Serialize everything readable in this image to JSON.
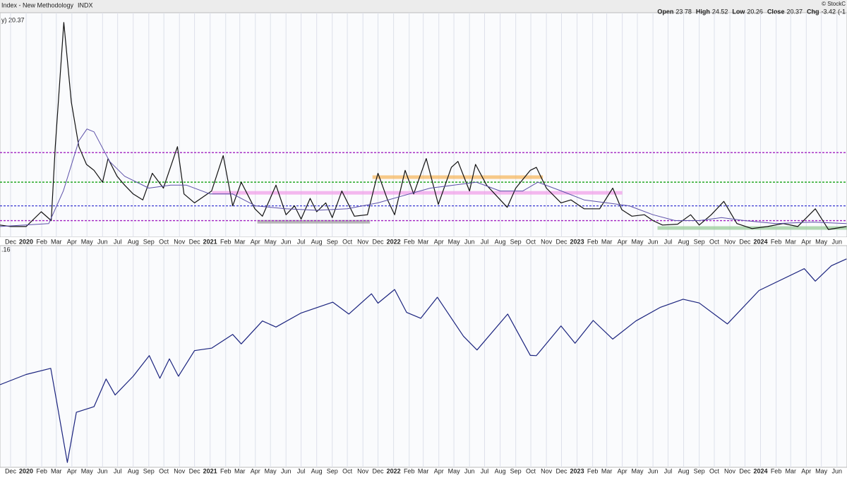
{
  "header": {
    "title": "Index - New Methodology",
    "symbol": "INDX",
    "brand": "© StockC",
    "quote": [
      {
        "label": "Open",
        "value": 23.78
      },
      {
        "label": "High",
        "value": 24.52
      },
      {
        "label": "Low",
        "value": 20.26
      },
      {
        "label": "Close",
        "value": 20.37
      },
      {
        "label": "Chg",
        "value": -3.42
      }
    ],
    "change_pct": "(-1"
  },
  "chart_data": [
    {
      "type": "line",
      "legend_text": "y) 20.37",
      "xlim": [
        "2019-11-10",
        "2024-06-21"
      ],
      "ylim": [
        9.4,
        85.3
      ],
      "log_scale": false,
      "grid": true,
      "xticks": [
        {
          "value": "2019-12-01",
          "label": "Dec"
        },
        {
          "value": "2020-01-01",
          "label": "2020"
        },
        {
          "value": "2020-02-01",
          "label": "Feb"
        },
        {
          "value": "2020-03-01",
          "label": "Mar"
        },
        {
          "value": "2020-04-01",
          "label": "Apr"
        },
        {
          "value": "2020-05-01",
          "label": "May"
        },
        {
          "value": "2020-06-01",
          "label": "Jun"
        },
        {
          "value": "2020-07-01",
          "label": "Jul"
        },
        {
          "value": "2020-08-01",
          "label": "Aug"
        },
        {
          "value": "2020-09-01",
          "label": "Sep"
        },
        {
          "value": "2020-10-01",
          "label": "Oct"
        },
        {
          "value": "2020-11-01",
          "label": "Nov"
        },
        {
          "value": "2020-12-01",
          "label": "Dec"
        },
        {
          "value": "2021-01-01",
          "label": "2021"
        },
        {
          "value": "2021-02-01",
          "label": "Feb"
        },
        {
          "value": "2021-03-01",
          "label": "Mar"
        },
        {
          "value": "2021-04-01",
          "label": "Apr"
        },
        {
          "value": "2021-05-01",
          "label": "May"
        },
        {
          "value": "2021-06-01",
          "label": "Jun"
        },
        {
          "value": "2021-07-01",
          "label": "Jul"
        },
        {
          "value": "2021-08-01",
          "label": "Aug"
        },
        {
          "value": "2021-09-01",
          "label": "Sep"
        },
        {
          "value": "2021-10-01",
          "label": "Oct"
        },
        {
          "value": "2021-11-01",
          "label": "Nov"
        },
        {
          "value": "2021-12-01",
          "label": "Dec"
        },
        {
          "value": "2022-01-01",
          "label": "2022"
        },
        {
          "value": "2022-02-01",
          "label": "Feb"
        },
        {
          "value": "2022-03-01",
          "label": "Mar"
        },
        {
          "value": "2022-04-01",
          "label": "Apr"
        },
        {
          "value": "2022-05-01",
          "label": "May"
        },
        {
          "value": "2022-06-01",
          "label": "Jun"
        },
        {
          "value": "2022-07-01",
          "label": "Jul"
        },
        {
          "value": "2022-08-01",
          "label": "Aug"
        },
        {
          "value": "2022-09-01",
          "label": "Sep"
        },
        {
          "value": "2022-10-01",
          "label": "Oct"
        },
        {
          "value": "2022-11-01",
          "label": "Nov"
        },
        {
          "value": "2022-12-01",
          "label": "Dec"
        },
        {
          "value": "2023-01-01",
          "label": "2023"
        },
        {
          "value": "2023-02-01",
          "label": "Feb"
        },
        {
          "value": "2023-03-01",
          "label": "Mar"
        },
        {
          "value": "2023-04-01",
          "label": "Apr"
        },
        {
          "value": "2023-05-01",
          "label": "May"
        },
        {
          "value": "2023-06-01",
          "label": "Jun"
        },
        {
          "value": "2023-07-01",
          "label": "Jul"
        },
        {
          "value": "2023-08-01",
          "label": "Aug"
        },
        {
          "value": "2023-09-01",
          "label": "Sep"
        },
        {
          "value": "2023-10-01",
          "label": "Oct"
        },
        {
          "value": "2023-11-01",
          "label": "Nov"
        },
        {
          "value": "2023-12-01",
          "label": "Dec"
        },
        {
          "value": "2024-01-01",
          "label": "2024"
        },
        {
          "value": "2024-02-01",
          "label": "Feb"
        },
        {
          "value": "2024-03-01",
          "label": "Mar"
        },
        {
          "value": "2024-04-01",
          "label": "Apr"
        },
        {
          "value": "2024-05-01",
          "label": "May"
        },
        {
          "value": "2024-06-01",
          "label": "Jun"
        }
      ],
      "levels": [
        {
          "value": 38,
          "color": "#a020c0"
        },
        {
          "value": 28,
          "color": "#10a010"
        },
        {
          "value": 20,
          "color": "#3a3ad0"
        },
        {
          "value": 15,
          "color": "#a020c0"
        }
      ],
      "bands": [
        {
          "value": 24.4,
          "from": "2021-01-05",
          "to": "2023-04-01",
          "color": "#f0a0e8"
        },
        {
          "value": 29.7,
          "from": "2021-11-20",
          "to": "2022-10-25",
          "color": "#f5b860"
        },
        {
          "value": 14.6,
          "from": "2021-04-05",
          "to": "2021-11-15",
          "color": "#a0a0a0"
        },
        {
          "value": 12.5,
          "from": "2023-06-10",
          "to": "2024-06-21",
          "color": "#9c9"
        }
      ],
      "series": [
        {
          "color": "#111111",
          "x": [
            "2019-11-10",
            "2019-12-01",
            "2020-01-01",
            "2020-01-31",
            "2020-02-20",
            "2020-02-28",
            "2020-03-16",
            "2020-03-31",
            "2020-04-15",
            "2020-04-30",
            "2020-05-15",
            "2020-06-01",
            "2020-06-12",
            "2020-06-30",
            "2020-07-15",
            "2020-08-01",
            "2020-08-20",
            "2020-09-08",
            "2020-09-30",
            "2020-10-28",
            "2020-11-10",
            "2020-12-01",
            "2021-01-04",
            "2021-01-27",
            "2021-02-15",
            "2021-03-04",
            "2021-03-31",
            "2021-04-15",
            "2021-05-12",
            "2021-06-01",
            "2021-06-18",
            "2021-07-01",
            "2021-07-19",
            "2021-08-01",
            "2021-08-19",
            "2021-09-01",
            "2021-09-20",
            "2021-10-15",
            "2021-11-10",
            "2021-11-26",
            "2021-12-01",
            "2021-12-20",
            "2022-01-03",
            "2022-01-24",
            "2022-02-10",
            "2022-03-07",
            "2022-03-31",
            "2022-04-26",
            "2022-05-09",
            "2022-06-01",
            "2022-06-13",
            "2022-07-05",
            "2022-08-15",
            "2022-09-01",
            "2022-09-30",
            "2022-10-12",
            "2022-11-01",
            "2022-11-30",
            "2022-12-20",
            "2023-01-15",
            "2023-02-15",
            "2023-03-13",
            "2023-03-31",
            "2023-04-20",
            "2023-05-15",
            "2023-06-01",
            "2023-06-20",
            "2023-07-20",
            "2023-08-15",
            "2023-09-01",
            "2023-09-25",
            "2023-10-20",
            "2023-11-15",
            "2023-12-15",
            "2024-01-15",
            "2024-02-15",
            "2024-03-15",
            "2024-04-19",
            "2024-05-15",
            "2024-06-20"
          ],
          "values": [
            13.5,
            13,
            13,
            18,
            15,
            40,
            82,
            55,
            40,
            34,
            32,
            28,
            36,
            30,
            27,
            24,
            22,
            31,
            26,
            40,
            24,
            21,
            25,
            37,
            20,
            28,
            19,
            16.5,
            27,
            17,
            20,
            15.5,
            22.5,
            18,
            21,
            16,
            25,
            16.5,
            17,
            28,
            31,
            22,
            17,
            32,
            24,
            36,
            20.5,
            33,
            35,
            25,
            34,
            27,
            19.5,
            26,
            32,
            33,
            26,
            21,
            22,
            19,
            19,
            26,
            18.7,
            16.5,
            17,
            15,
            13.5,
            13.8,
            17,
            13.5,
            17,
            21.5,
            14,
            12.3,
            13,
            14,
            13,
            19,
            12,
            13
          ]
        },
        {
          "color": "#5b4fa8",
          "x": [
            "2019-11-10",
            "2020-02-15",
            "2020-03-15",
            "2020-04-15",
            "2020-05-01",
            "2020-05-15",
            "2020-06-15",
            "2020-07-15",
            "2020-09-01",
            "2020-10-15",
            "2020-11-15",
            "2021-01-01",
            "2021-02-15",
            "2021-04-01",
            "2021-06-01",
            "2021-08-01",
            "2021-10-01",
            "2021-12-01",
            "2022-02-01",
            "2022-03-15",
            "2022-05-01",
            "2022-06-15",
            "2022-08-01",
            "2022-09-15",
            "2022-10-15",
            "2022-12-01",
            "2023-01-15",
            "2023-03-01",
            "2023-04-15",
            "2023-06-01",
            "2023-07-15",
            "2023-09-01",
            "2023-10-15",
            "2023-11-30",
            "2024-02-01",
            "2024-04-15",
            "2024-06-20"
          ],
          "values": [
            13,
            14,
            25,
            42,
            46,
            45,
            35,
            30,
            26,
            27,
            27,
            24,
            24,
            20,
            19,
            18.5,
            19,
            21,
            24,
            26,
            27,
            28,
            25,
            25,
            28,
            25,
            22,
            21,
            20,
            17,
            15,
            15,
            16,
            15,
            14,
            14.5,
            14
          ]
        }
      ]
    },
    {
      "type": "line",
      "legend_text": ".16",
      "xlim": [
        "2019-11-10",
        "2024-06-21"
      ],
      "ylim": [
        2190,
        5810
      ],
      "log_scale": true,
      "grid": true,
      "xticks": [
        {
          "value": "2019-12-01",
          "label": "Dec"
        },
        {
          "value": "2020-01-01",
          "label": "2020"
        },
        {
          "value": "2020-02-01",
          "label": "Feb"
        },
        {
          "value": "2020-03-01",
          "label": "Mar"
        },
        {
          "value": "2020-04-01",
          "label": "Apr"
        },
        {
          "value": "2020-05-01",
          "label": "May"
        },
        {
          "value": "2020-06-01",
          "label": "Jun"
        },
        {
          "value": "2020-07-01",
          "label": "Jul"
        },
        {
          "value": "2020-08-01",
          "label": "Aug"
        },
        {
          "value": "2020-09-01",
          "label": "Sep"
        },
        {
          "value": "2020-10-01",
          "label": "Oct"
        },
        {
          "value": "2020-11-01",
          "label": "Nov"
        },
        {
          "value": "2020-12-01",
          "label": "Dec"
        },
        {
          "value": "2021-01-01",
          "label": "2021"
        },
        {
          "value": "2021-02-01",
          "label": "Feb"
        },
        {
          "value": "2021-03-01",
          "label": "Mar"
        },
        {
          "value": "2021-04-01",
          "label": "Apr"
        },
        {
          "value": "2021-05-01",
          "label": "May"
        },
        {
          "value": "2021-06-01",
          "label": "Jun"
        },
        {
          "value": "2021-07-01",
          "label": "Jul"
        },
        {
          "value": "2021-08-01",
          "label": "Aug"
        },
        {
          "value": "2021-09-01",
          "label": "Sep"
        },
        {
          "value": "2021-10-01",
          "label": "Oct"
        },
        {
          "value": "2021-11-01",
          "label": "Nov"
        },
        {
          "value": "2021-12-01",
          "label": "Dec"
        },
        {
          "value": "2022-01-01",
          "label": "2022"
        },
        {
          "value": "2022-02-01",
          "label": "Feb"
        },
        {
          "value": "2022-03-01",
          "label": "Mar"
        },
        {
          "value": "2022-04-01",
          "label": "Apr"
        },
        {
          "value": "2022-05-01",
          "label": "May"
        },
        {
          "value": "2022-06-01",
          "label": "Jun"
        },
        {
          "value": "2022-07-01",
          "label": "Jul"
        },
        {
          "value": "2022-08-01",
          "label": "Aug"
        },
        {
          "value": "2022-09-01",
          "label": "Sep"
        },
        {
          "value": "2022-10-01",
          "label": "Oct"
        },
        {
          "value": "2022-11-01",
          "label": "Nov"
        },
        {
          "value": "2022-12-01",
          "label": "Dec"
        },
        {
          "value": "2023-01-01",
          "label": "2023"
        },
        {
          "value": "2023-02-01",
          "label": "Feb"
        },
        {
          "value": "2023-03-01",
          "label": "Mar"
        },
        {
          "value": "2023-04-01",
          "label": "Apr"
        },
        {
          "value": "2023-05-01",
          "label": "May"
        },
        {
          "value": "2023-06-01",
          "label": "Jun"
        },
        {
          "value": "2023-07-01",
          "label": "Jul"
        },
        {
          "value": "2023-08-01",
          "label": "Aug"
        },
        {
          "value": "2023-09-01",
          "label": "Sep"
        },
        {
          "value": "2023-10-01",
          "label": "Oct"
        },
        {
          "value": "2023-11-01",
          "label": "Nov"
        },
        {
          "value": "2023-12-01",
          "label": "Dec"
        },
        {
          "value": "2024-01-01",
          "label": "2024"
        },
        {
          "value": "2024-02-01",
          "label": "Feb"
        },
        {
          "value": "2024-03-01",
          "label": "Mar"
        },
        {
          "value": "2024-04-01",
          "label": "Apr"
        },
        {
          "value": "2024-05-01",
          "label": "May"
        },
        {
          "value": "2024-06-01",
          "label": "Jun"
        }
      ],
      "series": [
        {
          "color": "#1a237e",
          "x": [
            "2019-11-10",
            "2020-01-01",
            "2020-02-19",
            "2020-03-01",
            "2020-03-23",
            "2020-04-10",
            "2020-05-15",
            "2020-06-08",
            "2020-06-26",
            "2020-08-01",
            "2020-09-02",
            "2020-09-23",
            "2020-10-12",
            "2020-10-30",
            "2020-12-01",
            "2021-01-04",
            "2021-02-15",
            "2021-03-04",
            "2021-04-15",
            "2021-05-12",
            "2021-07-01",
            "2021-09-02",
            "2021-10-04",
            "2021-11-18",
            "2021-12-01",
            "2022-01-03",
            "2022-01-27",
            "2022-02-24",
            "2022-03-29",
            "2022-05-20",
            "2022-06-16",
            "2022-08-16",
            "2022-09-30",
            "2022-10-12",
            "2022-11-30",
            "2022-12-28",
            "2023-02-02",
            "2023-03-13",
            "2023-04-28",
            "2023-06-15",
            "2023-07-31",
            "2023-09-01",
            "2023-10-27",
            "2023-12-29",
            "2024-03-28",
            "2024-04-19",
            "2024-05-21",
            "2024-06-20"
          ],
          "values": [
            3150,
            3295,
            3386,
            2950,
            2237,
            2790,
            2860,
            3230,
            3010,
            3270,
            3580,
            3240,
            3530,
            3270,
            3660,
            3700,
            3930,
            3770,
            4170,
            4060,
            4320,
            4530,
            4300,
            4700,
            4510,
            4790,
            4330,
            4220,
            4630,
            3900,
            3670,
            4300,
            3585,
            3580,
            4080,
            3780,
            4180,
            3850,
            4170,
            4425,
            4590,
            4515,
            4117,
            4770,
            5250,
            4970,
            5320,
            5480
          ]
        }
      ]
    }
  ]
}
